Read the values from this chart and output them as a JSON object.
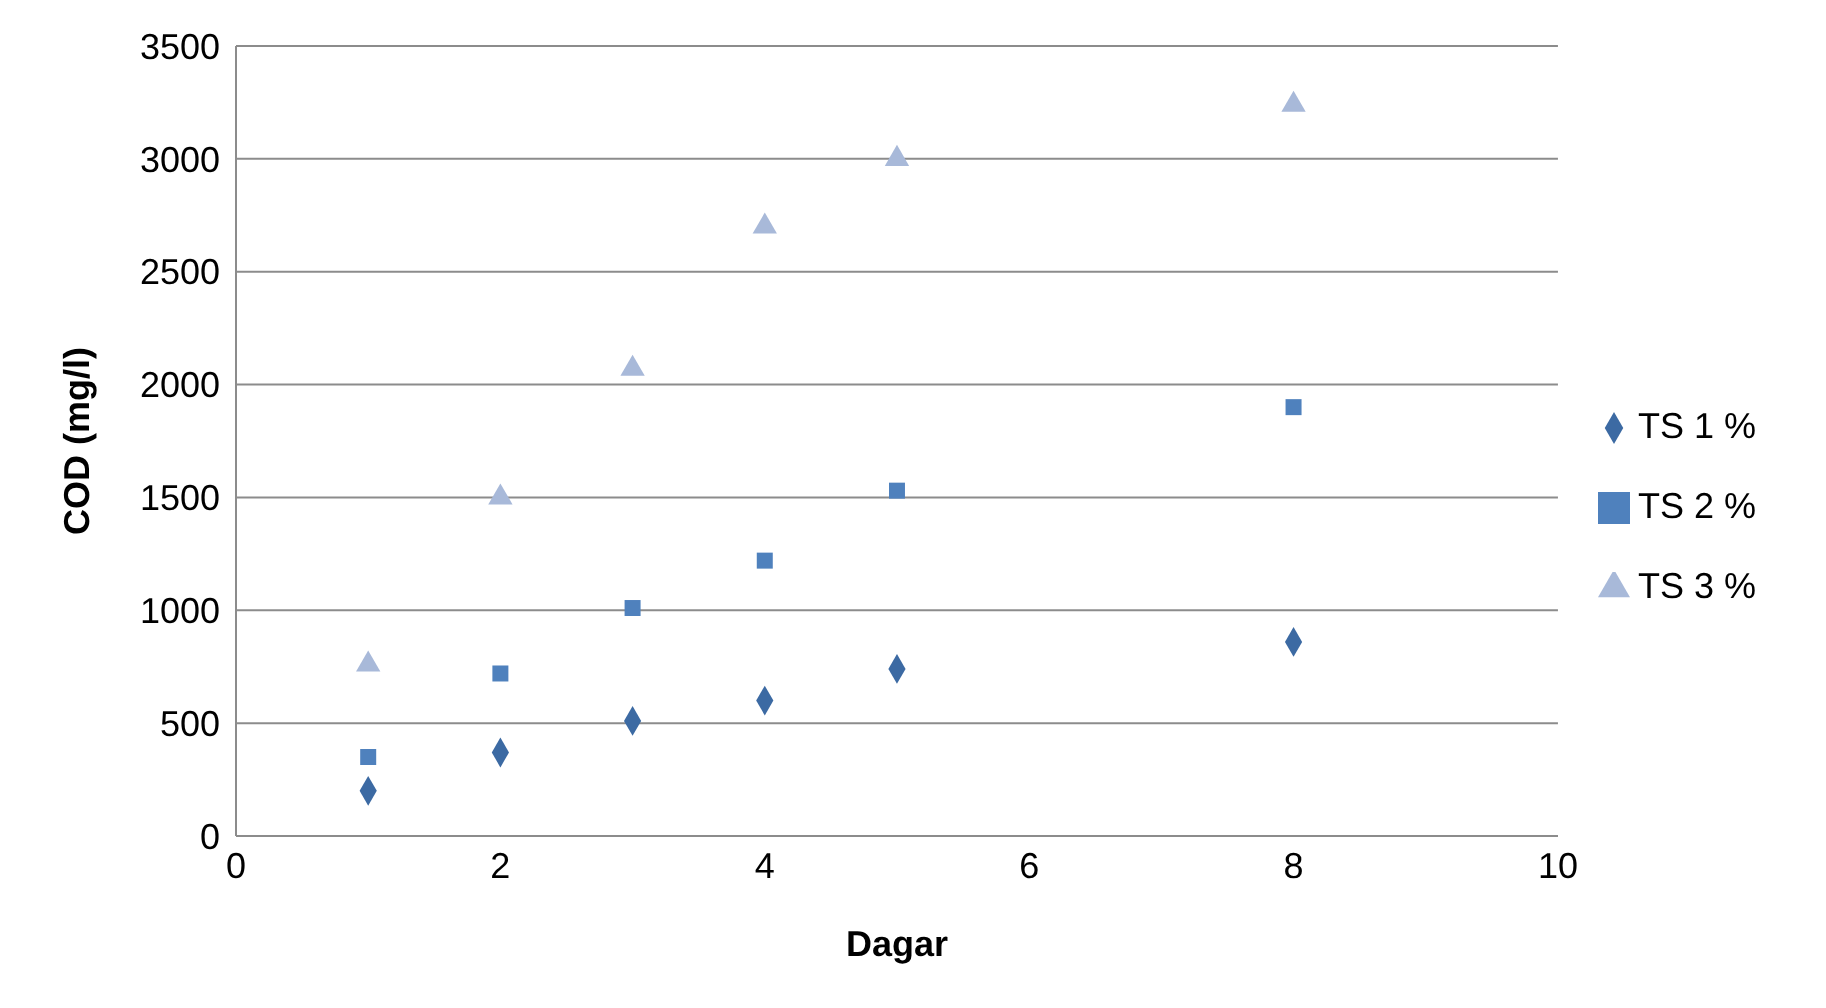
{
  "chart_data": {
    "type": "scatter",
    "xlabel": "Dagar",
    "ylabel": "COD (mg/l)",
    "x": [
      1,
      2,
      3,
      4,
      5,
      8
    ],
    "series": [
      {
        "name": "TS 1 %",
        "color": "#3c6aa3",
        "marker": "diamond",
        "values": [
          200,
          370,
          510,
          600,
          740,
          860
        ]
      },
      {
        "name": "TS 2 %",
        "color": "#4f81bd",
        "marker": "square",
        "values": [
          350,
          720,
          1010,
          1220,
          1530,
          1900
        ]
      },
      {
        "name": "TS 3 %",
        "color": "#a8b9d9",
        "marker": "triangle",
        "values": [
          760,
          1500,
          2070,
          2700,
          3000,
          3240
        ]
      }
    ],
    "xlim": [
      0,
      10
    ],
    "xticks": [
      0,
      2,
      4,
      6,
      8,
      10
    ],
    "ylim": [
      0,
      3500
    ],
    "yticks": [
      0,
      500,
      1000,
      1500,
      2000,
      2500,
      3000,
      3500
    ],
    "grid": "y",
    "legend": "right"
  }
}
